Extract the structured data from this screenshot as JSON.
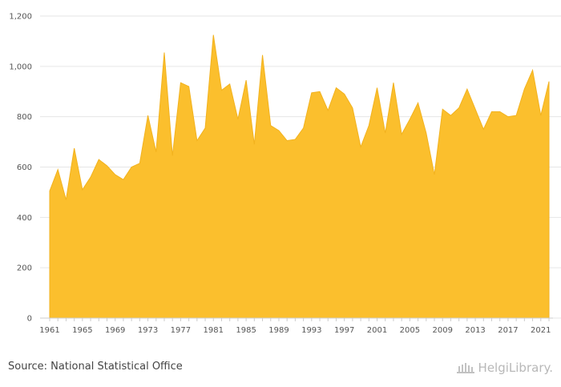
{
  "chart_data": {
    "type": "area",
    "title": "",
    "xlabel": "",
    "ylabel": "",
    "ylim": [
      0,
      1200
    ],
    "yticks": [
      "0",
      "200",
      "400",
      "600",
      "800",
      "1,000",
      "1,200"
    ],
    "ytick_values": [
      0,
      200,
      400,
      600,
      800,
      1000,
      1200
    ],
    "xticks": [
      "1961",
      "1965",
      "1969",
      "1973",
      "1977",
      "1981",
      "1985",
      "1989",
      "1993",
      "1997",
      "2001",
      "2005",
      "2009",
      "2013",
      "2017",
      "2021"
    ],
    "grid": true,
    "color": "#fbbf2d",
    "stroke_color": "#f2b21e",
    "x": [
      1961,
      1962,
      1963,
      1964,
      1965,
      1966,
      1967,
      1968,
      1969,
      1970,
      1971,
      1972,
      1973,
      1974,
      1975,
      1976,
      1977,
      1978,
      1979,
      1980,
      1981,
      1982,
      1983,
      1984,
      1985,
      1986,
      1987,
      1988,
      1989,
      1990,
      1991,
      1992,
      1993,
      1994,
      1995,
      1996,
      1997,
      1998,
      1999,
      2000,
      2001,
      2002,
      2003,
      2004,
      2005,
      2006,
      2007,
      2008,
      2009,
      2010,
      2011,
      2012,
      2013,
      2014,
      2015,
      2016,
      2017,
      2018,
      2019,
      2020,
      2021,
      2022
    ],
    "values": [
      505,
      590,
      470,
      675,
      510,
      560,
      630,
      605,
      570,
      550,
      600,
      615,
      805,
      660,
      1055,
      645,
      935,
      920,
      705,
      755,
      1125,
      905,
      930,
      790,
      945,
      690,
      1045,
      765,
      745,
      705,
      710,
      755,
      895,
      900,
      825,
      915,
      890,
      835,
      680,
      765,
      915,
      735,
      935,
      730,
      790,
      855,
      735,
      570,
      830,
      805,
      835,
      910,
      830,
      750,
      820,
      820,
      800,
      805,
      910,
      985,
      805,
      940
    ]
  },
  "footer": {
    "source": "Source: National Statistical Office",
    "brand": "HelgiLibrary."
  },
  "icons": {
    "brand_logo": "library-building-icon"
  }
}
